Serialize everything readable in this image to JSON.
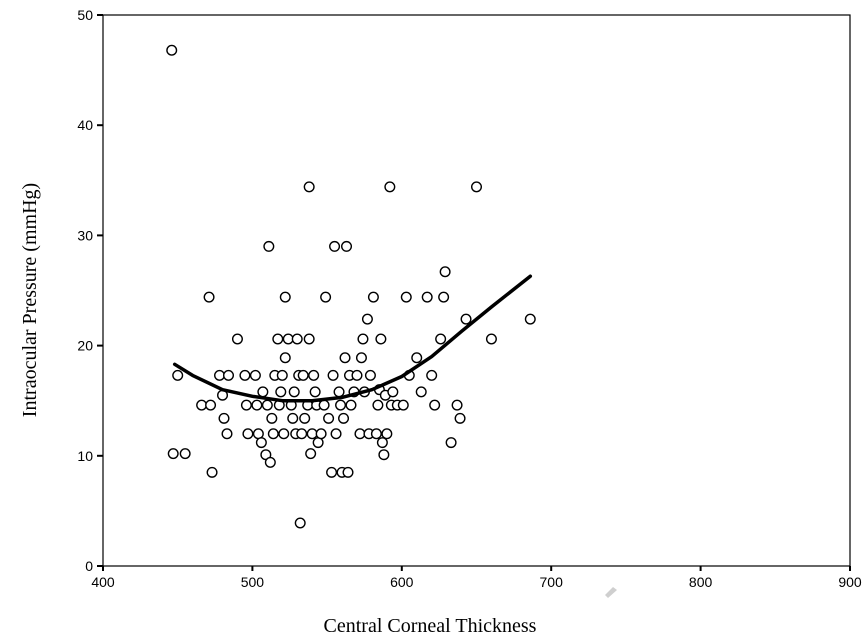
{
  "chart_data": {
    "type": "scatter",
    "xlabel": "Central Corneal Thickness",
    "ylabel": "Intraocular Pressure (mmHg)",
    "xlim": [
      400,
      900
    ],
    "ylim": [
      0,
      50
    ],
    "xticks": [
      400,
      500,
      600,
      700,
      800,
      900
    ],
    "yticks": [
      0,
      10,
      20,
      30,
      40,
      50
    ],
    "grid": false,
    "legend": "none",
    "colors": {
      "marker_stroke": "#000000",
      "marker_fill": "#ffffff",
      "fit_line": "#000000"
    },
    "points": [
      [
        446,
        46.8
      ],
      [
        450,
        17.3
      ],
      [
        447,
        10.2
      ],
      [
        455,
        10.2
      ],
      [
        466,
        14.6
      ],
      [
        472,
        14.6
      ],
      [
        471,
        24.4
      ],
      [
        473,
        8.5
      ],
      [
        478,
        17.3
      ],
      [
        481,
        13.4
      ],
      [
        483,
        12.0
      ],
      [
        484,
        17.3
      ],
      [
        480,
        15.5
      ],
      [
        490,
        20.6
      ],
      [
        495,
        17.3
      ],
      [
        496,
        14.6
      ],
      [
        497,
        12.0
      ],
      [
        502,
        17.3
      ],
      [
        503,
        14.6
      ],
      [
        504,
        12.0
      ],
      [
        506,
        11.2
      ],
      [
        507,
        15.8
      ],
      [
        509,
        10.1
      ],
      [
        510,
        14.6
      ],
      [
        511,
        29.0
      ],
      [
        512,
        9.4
      ],
      [
        513,
        13.4
      ],
      [
        514,
        12.0
      ],
      [
        515,
        17.3
      ],
      [
        517,
        20.6
      ],
      [
        518,
        14.6
      ],
      [
        519,
        15.8
      ],
      [
        520,
        17.3
      ],
      [
        521,
        12.0
      ],
      [
        522,
        24.4
      ],
      [
        522,
        18.9
      ],
      [
        524,
        20.6
      ],
      [
        526,
        14.6
      ],
      [
        527,
        13.4
      ],
      [
        528,
        15.8
      ],
      [
        529,
        12.0
      ],
      [
        530,
        20.6
      ],
      [
        531,
        17.3
      ],
      [
        532,
        3.9
      ],
      [
        533,
        12.0
      ],
      [
        534,
        17.3
      ],
      [
        535,
        13.4
      ],
      [
        537,
        14.6
      ],
      [
        538,
        20.6
      ],
      [
        538,
        34.4
      ],
      [
        539,
        10.2
      ],
      [
        540,
        12.0
      ],
      [
        541,
        17.3
      ],
      [
        542,
        15.8
      ],
      [
        543,
        14.6
      ],
      [
        544,
        11.2
      ],
      [
        546,
        12.0
      ],
      [
        548,
        14.6
      ],
      [
        549,
        24.4
      ],
      [
        551,
        13.4
      ],
      [
        553,
        8.5
      ],
      [
        554,
        17.3
      ],
      [
        555,
        29.0
      ],
      [
        556,
        12.0
      ],
      [
        558,
        15.8
      ],
      [
        559,
        14.6
      ],
      [
        560,
        8.5
      ],
      [
        561,
        13.4
      ],
      [
        562,
        18.9
      ],
      [
        563,
        29.0
      ],
      [
        564,
        8.5
      ],
      [
        565,
        17.3
      ],
      [
        566,
        14.6
      ],
      [
        568,
        15.8
      ],
      [
        570,
        17.3
      ],
      [
        572,
        12.0
      ],
      [
        573,
        18.9
      ],
      [
        574,
        20.6
      ],
      [
        575,
        15.8
      ],
      [
        577,
        22.4
      ],
      [
        578,
        12.0
      ],
      [
        579,
        17.3
      ],
      [
        581,
        24.4
      ],
      [
        583,
        12.0
      ],
      [
        584,
        14.6
      ],
      [
        585,
        16.0
      ],
      [
        586,
        20.6
      ],
      [
        587,
        11.2
      ],
      [
        588,
        10.1
      ],
      [
        589,
        15.5
      ],
      [
        590,
        12.0
      ],
      [
        592,
        34.4
      ],
      [
        593,
        14.6
      ],
      [
        594,
        15.8
      ],
      [
        597,
        14.6
      ],
      [
        601,
        14.6
      ],
      [
        603,
        24.4
      ],
      [
        605,
        17.3
      ],
      [
        610,
        18.9
      ],
      [
        613,
        15.8
      ],
      [
        617,
        24.4
      ],
      [
        620,
        17.3
      ],
      [
        622,
        14.6
      ],
      [
        626,
        20.6
      ],
      [
        628,
        24.4
      ],
      [
        629,
        26.7
      ],
      [
        633,
        11.2
      ],
      [
        637,
        14.6
      ],
      [
        639,
        13.4
      ],
      [
        643,
        22.4
      ],
      [
        650,
        34.4
      ],
      [
        660,
        20.6
      ],
      [
        686,
        22.4
      ]
    ],
    "fit": {
      "label": "",
      "x": [
        448,
        460,
        480,
        500,
        520,
        540,
        560,
        580,
        600,
        620,
        640,
        660,
        686
      ],
      "y": [
        18.3,
        17.3,
        16.0,
        15.4,
        15.0,
        15.0,
        15.3,
        16.0,
        17.2,
        19.0,
        21.3,
        23.5,
        26.3
      ]
    }
  }
}
